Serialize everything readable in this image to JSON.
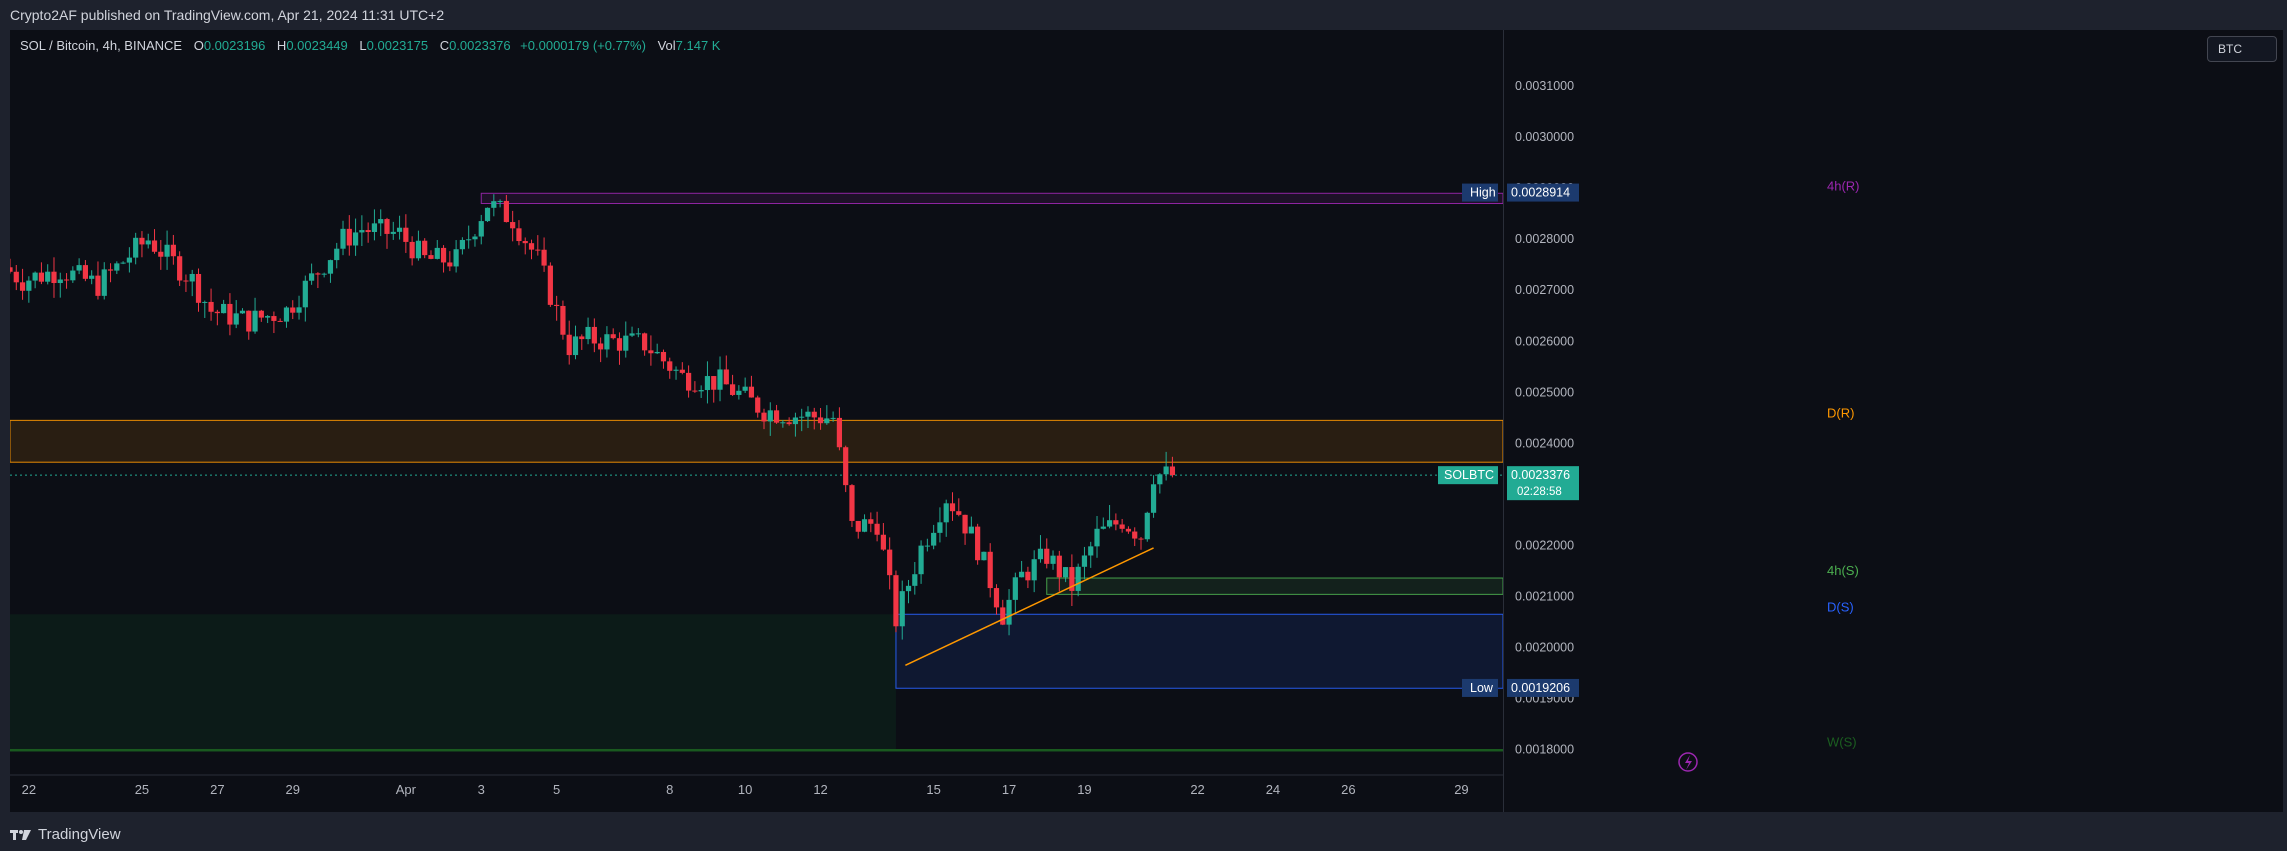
{
  "publish_info": "Crypto2AF published on TradingView.com, Apr 21, 2024 11:31 UTC+2",
  "footer": {
    "brand": "TradingView"
  },
  "legend": {
    "symbol": "SOL / Bitcoin, 4h, BINANCE",
    "open_label": "O",
    "open": "0.0023196",
    "high_label": "H",
    "high": "0.0023449",
    "low_label": "L",
    "low": "0.0023175",
    "close_label": "C",
    "close": "0.0023376",
    "change": "+0.0000179 (+0.77%)",
    "vol_label": "Vol",
    "vol": "7.147 K"
  },
  "currency_button": "BTC",
  "colors": {
    "up": "#22ab94",
    "down": "#f23645",
    "background": "#0c0e15",
    "resistance_4h": "#9c27b0",
    "resistance_daily": "#ff9800",
    "support_4h": "#4caf50",
    "support_daily": "#2962ff",
    "support_weekly": "#1b5e20",
    "trendline": "#ff9800"
  },
  "chart_data": {
    "type": "candlestick",
    "symbol": "SOLBTC",
    "timeframe": "4h",
    "ylim": [
      0.00175,
      0.00321
    ],
    "x_range": [
      "2024-03-21T12:00",
      "2024-03-31T03:00"
    ],
    "x_ticks": [
      {
        "label": "22",
        "date": "2024-03-22"
      },
      {
        "label": "25",
        "date": "2024-03-25"
      },
      {
        "label": "27",
        "date": "2024-03-27"
      },
      {
        "label": "29",
        "date": "2024-03-29"
      },
      {
        "label": "Apr",
        "date": "2024-04-01"
      },
      {
        "label": "3",
        "date": "2024-04-03"
      },
      {
        "label": "5",
        "date": "2024-04-05"
      },
      {
        "label": "8",
        "date": "2024-04-08"
      },
      {
        "label": "10",
        "date": "2024-04-10"
      },
      {
        "label": "12",
        "date": "2024-04-12"
      },
      {
        "label": "15",
        "date": "2024-04-15"
      },
      {
        "label": "17",
        "date": "2024-04-17"
      },
      {
        "label": "19",
        "date": "2024-04-19"
      },
      {
        "label": "22",
        "date": "2024-04-22"
      },
      {
        "label": "24",
        "date": "2024-04-24"
      },
      {
        "label": "26",
        "date": "2024-04-26"
      },
      {
        "label": "29",
        "date": "2024-04-29"
      }
    ],
    "y_ticks": [
      "0.0031000",
      "0.0030000",
      "0.0029000",
      "0.0028000",
      "0.0027000",
      "0.0026000",
      "0.0025000",
      "0.0024000",
      "0.0022000",
      "0.0021000",
      "0.0020000",
      "0.0019000",
      "0.0018000"
    ],
    "price_markers": [
      {
        "label": "High",
        "value": "0.0028914",
        "price": 0.0028914,
        "color": "#1c3a6e"
      },
      {
        "label": "Low",
        "value": "0.0019206",
        "price": 0.0019206,
        "color": "#1c3a6e"
      }
    ],
    "current_price": {
      "label": "SOLBTC",
      "value": "0.0023376",
      "countdown": "02:28:58",
      "price": 0.0023376
    },
    "zones": [
      {
        "label": "4h(R)",
        "top": 0.00289,
        "bottom": 0.00287,
        "color": "#9c27b0",
        "from": "2024-04-03"
      },
      {
        "label": "D(R)",
        "top": 0.002445,
        "bottom": 0.002363,
        "color": "#ff9800",
        "from": "2024-03-21"
      },
      {
        "label": "4h(S)",
        "top": 0.002136,
        "bottom": 0.002104,
        "color": "#4caf50",
        "from": "2024-04-18"
      },
      {
        "label": "D(S)",
        "top": 0.002065,
        "bottom": 0.00192,
        "color": "#2962ff",
        "from": "2024-04-14"
      },
      {
        "label": "W(S)",
        "top": 0.0018,
        "bottom": 0.0018,
        "color": "#1b5e20",
        "from": "2024-03-21"
      }
    ],
    "trendline": {
      "from": {
        "date": "2024-04-14T06:00",
        "price": 0.001965
      },
      "to": {
        "date": "2024-04-20T20:00",
        "price": 0.002195
      }
    },
    "anchors": [
      {
        "date": "2024-03-21T12:00",
        "price": 0.002745
      },
      {
        "date": "2024-03-22T00:00",
        "price": 0.00272
      },
      {
        "date": "2024-03-23T00:00",
        "price": 0.00274
      },
      {
        "date": "2024-03-24T00:00",
        "price": 0.00271
      },
      {
        "date": "2024-03-25T00:00",
        "price": 0.00278
      },
      {
        "date": "2024-03-25T08:00",
        "price": 0.0028
      },
      {
        "date": "2024-03-26T12:00",
        "price": 0.00272
      },
      {
        "date": "2024-03-27T00:00",
        "price": 0.00266
      },
      {
        "date": "2024-03-28T00:00",
        "price": 0.00264
      },
      {
        "date": "2024-03-29T00:00",
        "price": 0.00266
      },
      {
        "date": "2024-03-30T12:00",
        "price": 0.0028
      },
      {
        "date": "2024-03-31T00:00",
        "price": 0.00282
      },
      {
        "date": "2024-04-01T00:00",
        "price": 0.00281
      },
      {
        "date": "2024-04-01T16:00",
        "price": 0.00276
      },
      {
        "date": "2024-04-02T12:00",
        "price": 0.00276
      },
      {
        "date": "2024-04-03T08:00",
        "price": 0.00287
      },
      {
        "date": "2024-04-04T00:00",
        "price": 0.00284
      },
      {
        "date": "2024-04-04T16:00",
        "price": 0.00276
      },
      {
        "date": "2024-04-05T12:00",
        "price": 0.00259
      },
      {
        "date": "2024-04-06T00:00",
        "price": 0.002605
      },
      {
        "date": "2024-04-07T12:00",
        "price": 0.002595
      },
      {
        "date": "2024-04-08T12:00",
        "price": 0.00253
      },
      {
        "date": "2024-04-09T12:00",
        "price": 0.00252
      },
      {
        "date": "2024-04-10T16:00",
        "price": 0.002465
      },
      {
        "date": "2024-04-11T12:00",
        "price": 0.002455
      },
      {
        "date": "2024-04-12T12:00",
        "price": 0.00245
      },
      {
        "date": "2024-04-13T00:00",
        "price": 0.002235
      },
      {
        "date": "2024-04-13T16:00",
        "price": 0.002245
      },
      {
        "date": "2024-04-14T04:00",
        "price": 0.002055
      },
      {
        "date": "2024-04-14T20:00",
        "price": 0.002195
      },
      {
        "date": "2024-04-15T12:00",
        "price": 0.002295
      },
      {
        "date": "2024-04-15T20:00",
        "price": 0.002265
      },
      {
        "date": "2024-04-16T08:00",
        "price": 0.002195
      },
      {
        "date": "2024-04-17T00:00",
        "price": 0.002065
      },
      {
        "date": "2024-04-17T12:00",
        "price": 0.00214
      },
      {
        "date": "2024-04-18T04:00",
        "price": 0.00218
      },
      {
        "date": "2024-04-18T20:00",
        "price": 0.00212
      },
      {
        "date": "2024-04-19T12:00",
        "price": 0.00222
      },
      {
        "date": "2024-04-20T04:00",
        "price": 0.00225
      },
      {
        "date": "2024-04-20T16:00",
        "price": 0.00222
      },
      {
        "date": "2024-04-21T00:00",
        "price": 0.00234
      },
      {
        "date": "2024-04-21T08:00",
        "price": 0.0023376
      }
    ]
  }
}
